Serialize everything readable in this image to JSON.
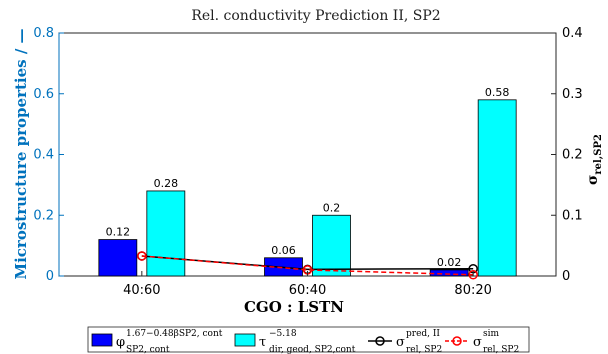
{
  "chart_data": {
    "type": "bar",
    "title": "Rel. conductivity Prediction II, SP2",
    "xlabel": "CGO : LSTN",
    "ylabel": "Microstructure properties / —",
    "ylabel_right": "σrel,SP2",
    "categories": [
      "40:60",
      "60:40",
      "80:20"
    ],
    "ylim": [
      0,
      0.8
    ],
    "yticks": [
      "0",
      "0.2",
      "0.4",
      "0.6",
      "0.8"
    ],
    "y2lim": [
      0,
      0.4
    ],
    "y2ticks": [
      "0",
      "0.1",
      "0.2",
      "0.3",
      "0.4"
    ],
    "bar_series": [
      {
        "values": [
          0.12,
          0.06,
          0.02
        ],
        "labels": [
          "0.12",
          "0.06",
          "0.02"
        ],
        "color": "#0000FF"
      },
      {
        "values": [
          0.28,
          0.2,
          0.58
        ],
        "labels": [
          "0.28",
          "0.2",
          "0.58"
        ],
        "color": "#00FFFF"
      }
    ],
    "line_series": [
      {
        "axis": "right",
        "values": [
          0.033,
          0.011,
          0.012
        ],
        "color": "#000000",
        "style": "solid",
        "marker": "o"
      },
      {
        "axis": "right",
        "values": [
          0.033,
          0.01,
          0.002
        ],
        "color": "#FF0000",
        "style": "dashed",
        "marker": "o"
      }
    ],
    "legend": [
      {
        "type": "bar",
        "color": "#0000FF",
        "symbol": "φ",
        "sub": "SP2, cont",
        "sup": "1.67−0.48βSP2, cont"
      },
      {
        "type": "bar",
        "color": "#00FFFF",
        "symbol": "τ",
        "sub": "dir, geod, SP2,cont",
        "sup": "−5.18"
      },
      {
        "type": "line",
        "color": "#000000",
        "dash": false,
        "symbol": "σ",
        "sub": "rel, SP2",
        "sup": "pred, II"
      },
      {
        "type": "line",
        "color": "#FF0000",
        "dash": true,
        "symbol": "σ",
        "sub": "rel, SP2",
        "sup": "sim"
      }
    ],
    "grid": false,
    "legend_position": "bottom"
  }
}
